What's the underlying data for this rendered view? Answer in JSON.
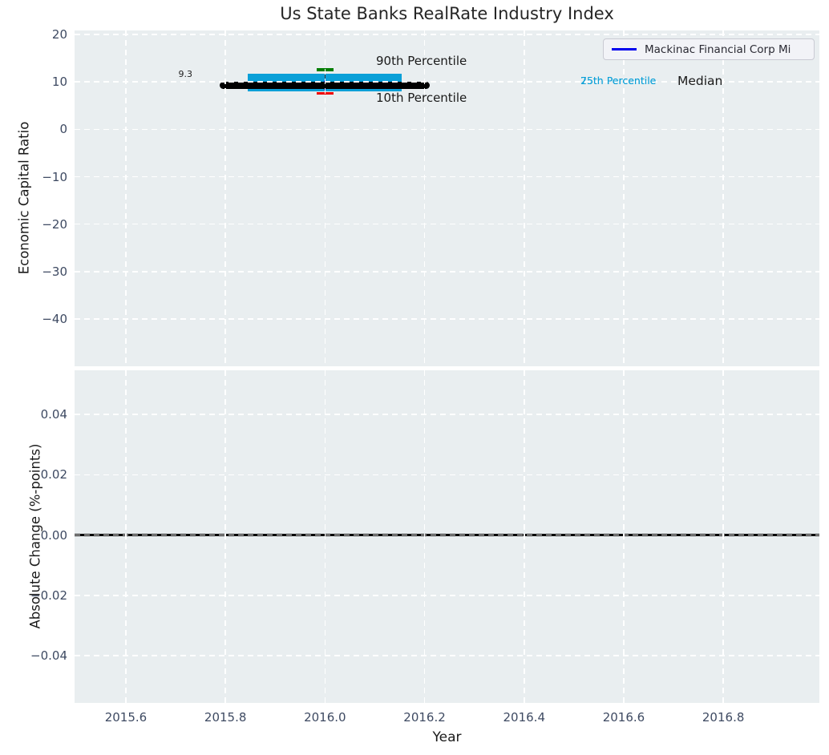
{
  "figure": {
    "title": "Us State Banks RealRate Industry Index",
    "legend": {
      "label": "Mackinac Financial Corp Mi",
      "line_color": "#0000ee"
    }
  },
  "colors": {
    "plot_background": "#e9eef0",
    "grid": "#ffffff",
    "tick_label": "#3e4a62",
    "box": "#0aa0d8",
    "median_line": "#000000",
    "p90_cap": "#007d00",
    "p10_cap": "#ee0000",
    "series": "#0000d0",
    "zero_line": "#000000"
  },
  "chart_data": [
    {
      "type": "boxplot",
      "subplot": "top",
      "title": "Us State Banks RealRate Industry Index",
      "ylabel": "Economic Capital Ratio",
      "xlim": [
        2015.497,
        2016.993
      ],
      "ylim": [
        -49.97,
        20.85
      ],
      "grid": "dashed-white",
      "legend_position": "upper right",
      "xticks": {
        "values": [
          2015.6,
          2015.8,
          2016.0,
          2016.2,
          2016.4,
          2016.6,
          2016.8
        ],
        "labels_visible": false
      },
      "yticks": {
        "values": [
          20,
          10,
          0,
          -10,
          -20,
          -30,
          -40
        ],
        "labels": [
          "20",
          "10",
          "0",
          "−10",
          "−20",
          "−30",
          "−40"
        ]
      },
      "series": [
        {
          "name": "Mackinac Financial Corp Mi",
          "x": [
            2016.0
          ],
          "y": [
            9.3
          ],
          "color": "#0000d0"
        }
      ],
      "distribution": {
        "x": 2016.0,
        "p10": 7.6,
        "p25": 8.0,
        "median": 9.3,
        "p75": 11.7,
        "p90": 12.6,
        "box_color": "#0aa0d8",
        "median_color": "#000000",
        "p90_cap_color": "#007d00",
        "p10_cap_color": "#ee0000"
      },
      "annotations": [
        {
          "text": "9.3",
          "color": "#222222"
        },
        {
          "text": "90th Percentile",
          "color": "#1a1a1a"
        },
        {
          "text": "10th Percentile",
          "color": "#1a1a1a"
        },
        {
          "text": "25th Percentile",
          "color": "#0aa0d8"
        },
        {
          "text": "75th Percentile",
          "color": "#0aa0d8"
        },
        {
          "text": "Median",
          "color": "#1a1a1a"
        }
      ]
    },
    {
      "type": "line",
      "subplot": "bottom",
      "ylabel": "Absolute Change (%-points)",
      "xlabel": "Year",
      "xlim": [
        2015.497,
        2016.993
      ],
      "ylim": [
        -0.05568,
        0.05462
      ],
      "grid": "dashed-white",
      "xticks": {
        "values": [
          2015.6,
          2015.8,
          2016.0,
          2016.2,
          2016.4,
          2016.6,
          2016.8
        ],
        "labels": [
          "2015.6",
          "2015.8",
          "2016.0",
          "2016.2",
          "2016.4",
          "2016.6",
          "2016.8"
        ],
        "labels_visible": true
      },
      "yticks": {
        "values": [
          0.04,
          0.02,
          0.0,
          -0.02,
          -0.04
        ],
        "labels": [
          "0.04",
          "0.02",
          "0.00",
          "−0.02",
          "−0.04"
        ]
      },
      "series": [],
      "zero_line": {
        "y": 0.0,
        "color": "#000000"
      }
    }
  ]
}
